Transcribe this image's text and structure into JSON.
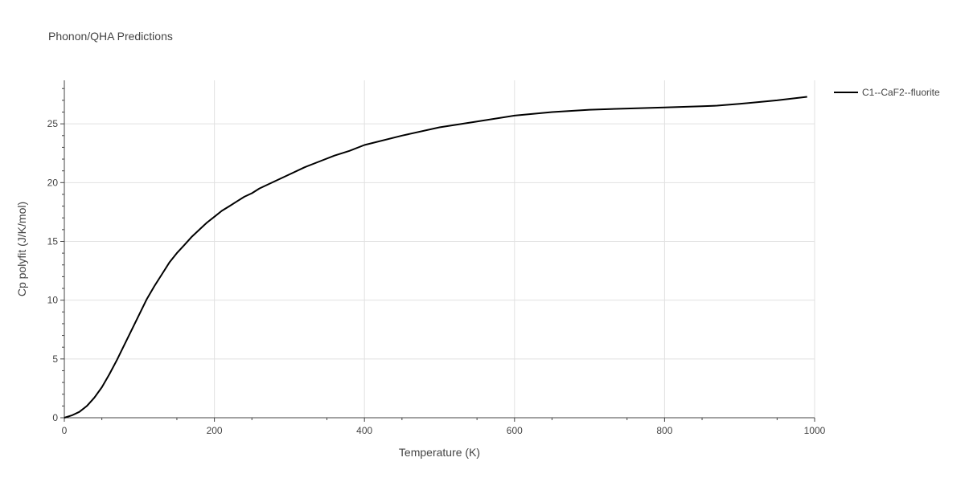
{
  "chart_data": {
    "type": "line",
    "title": "Phonon/QHA Predictions",
    "xlabel": "Temperature (K)",
    "ylabel": "Cp polyfit (J/K/mol)",
    "xlim": [
      0,
      1000
    ],
    "ylim": [
      0,
      28.7
    ],
    "x_ticks": [
      0,
      200,
      400,
      600,
      800,
      1000
    ],
    "y_ticks": [
      0,
      5,
      10,
      15,
      20,
      25
    ],
    "x_tick_labels": [
      "0",
      "200",
      "400",
      "600",
      "800",
      "1000"
    ],
    "y_tick_labels": [
      "0",
      "5",
      "10",
      "15",
      "20",
      "25"
    ],
    "grid": true,
    "legend_position": "right",
    "series": [
      {
        "name": "C1--CaF2--fluorite",
        "color": "#000000",
        "x": [
          0,
          10,
          20,
          30,
          40,
          50,
          60,
          70,
          80,
          90,
          100,
          110,
          120,
          130,
          140,
          150,
          160,
          170,
          180,
          190,
          200,
          210,
          220,
          230,
          240,
          250,
          260,
          280,
          300,
          320,
          340,
          360,
          380,
          400,
          450,
          500,
          550,
          600,
          650,
          700,
          750,
          800,
          850,
          870,
          900,
          950,
          990
        ],
        "y": [
          0,
          0.2,
          0.5,
          1.0,
          1.7,
          2.6,
          3.7,
          4.9,
          6.2,
          7.5,
          8.8,
          10.1,
          11.2,
          12.2,
          13.2,
          14.0,
          14.7,
          15.4,
          16.0,
          16.6,
          17.1,
          17.6,
          18.0,
          18.4,
          18.8,
          19.1,
          19.5,
          20.1,
          20.7,
          21.3,
          21.8,
          22.3,
          22.7,
          23.2,
          24.0,
          24.7,
          25.2,
          25.7,
          26.0,
          26.2,
          26.3,
          26.4,
          26.5,
          26.55,
          26.7,
          27.0,
          27.3
        ]
      }
    ]
  }
}
